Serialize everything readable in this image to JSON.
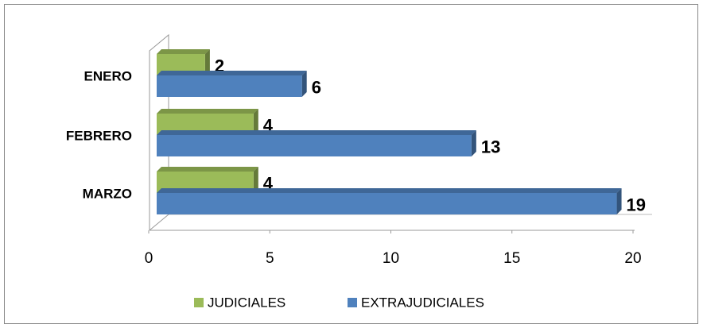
{
  "chart_data": {
    "type": "bar3d_horizontal",
    "categories": [
      "ENERO",
      "FEBRERO",
      "MARZO"
    ],
    "series": [
      {
        "name": "JUDICIALES",
        "color": "#9bbb59",
        "values": [
          2,
          4,
          4
        ]
      },
      {
        "name": "EXTRAJUDICIALES",
        "color": "#4f81bd",
        "values": [
          6,
          13,
          19
        ]
      }
    ],
    "xlim": [
      0,
      20
    ],
    "xticks": [
      0,
      5,
      10,
      15,
      20
    ],
    "legend": "bottom"
  }
}
